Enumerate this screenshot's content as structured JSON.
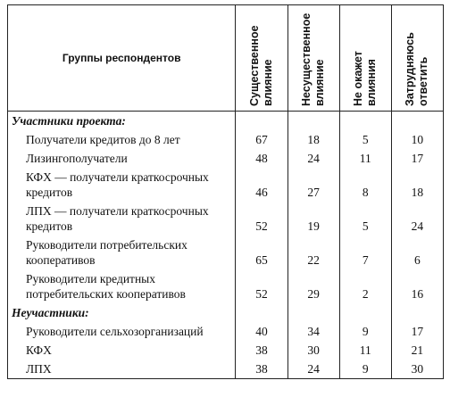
{
  "table": {
    "header": [
      "Группы респондентов",
      "Существенное влияние",
      "Несущественное влияние",
      "Не окажет влияния",
      "Затрудняюсь ответить"
    ],
    "sections": [
      {
        "title": "Участники проекта:",
        "rows": [
          [
            "Получатели кредитов до 8 лет",
            67,
            18,
            5,
            10
          ],
          [
            "Лизингополучатели",
            48,
            24,
            11,
            17
          ],
          [
            "КФХ — получатели краткосрочных кредитов",
            46,
            27,
            8,
            18
          ],
          [
            "ЛПХ — получатели краткосрочных кредитов",
            52,
            19,
            5,
            24
          ],
          [
            "Руководители потребительских кооперативов",
            65,
            22,
            7,
            6
          ],
          [
            "Руководители кредитных потребительских кооперативов",
            52,
            29,
            2,
            16
          ]
        ]
      },
      {
        "title": "Неучастники:",
        "rows": [
          [
            "Руководители сельхозорганизаций",
            40,
            34,
            9,
            17
          ],
          [
            "КФХ",
            38,
            30,
            11,
            21
          ],
          [
            "ЛПХ",
            38,
            24,
            9,
            30
          ]
        ]
      }
    ]
  }
}
